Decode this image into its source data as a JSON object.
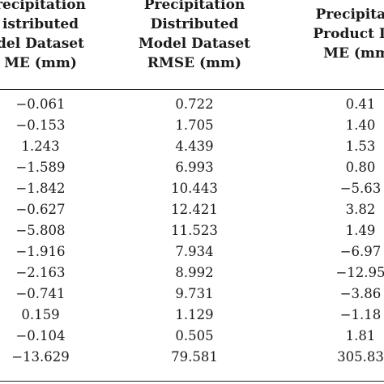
{
  "table": {
    "headers": [
      [
        "recipitation",
        "istributed",
        "del Dataset",
        "ME (mm)"
      ],
      [
        "Precipitation",
        "Distributed",
        "Model Dataset",
        "RMSE (mm)"
      ],
      [
        "Precipitati",
        "Product Da",
        "ME (mm"
      ]
    ],
    "rows": [
      [
        "−0.061",
        "0.722",
        "0.41"
      ],
      [
        "−0.153",
        "1.705",
        "1.40"
      ],
      [
        "1.243",
        "4.439",
        "1.53"
      ],
      [
        "−1.589",
        "6.993",
        "0.80"
      ],
      [
        "−1.842",
        "10.443",
        "−5.63"
      ],
      [
        "−0.627",
        "12.421",
        "3.82"
      ],
      [
        "−5.808",
        "11.523",
        "1.49"
      ],
      [
        "−1.916",
        "7.934",
        "−6.97"
      ],
      [
        "−2.163",
        "8.992",
        "−12.95"
      ],
      [
        "−0.741",
        "9.731",
        "−3.86"
      ],
      [
        "0.159",
        "1.129",
        "−1.18"
      ],
      [
        "−0.104",
        "0.505",
        "1.81"
      ],
      [
        "−13.629",
        "79.581",
        "305.83"
      ]
    ]
  }
}
